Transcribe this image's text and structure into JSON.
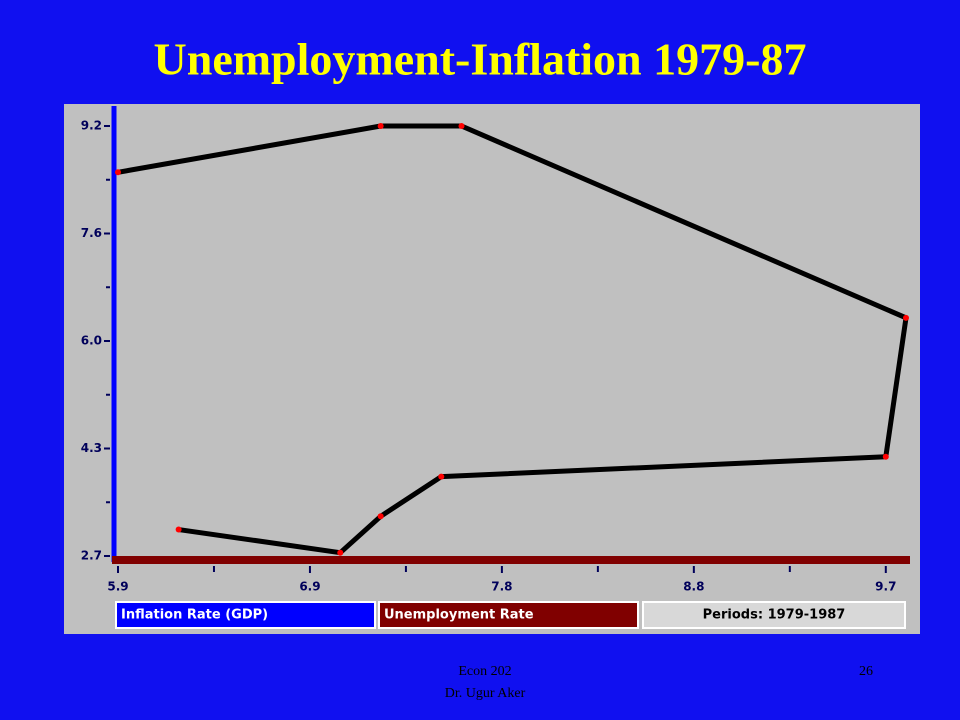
{
  "chart_data": {
    "type": "line",
    "title": "Unemployment-Inflation 1979-87",
    "x": [
      5.9,
      7.2,
      7.6,
      9.8,
      9.7,
      7.5,
      7.2,
      7.0,
      6.2
    ],
    "values": [
      8.5,
      9.2,
      9.2,
      6.3,
      4.2,
      3.9,
      3.3,
      2.75,
      3.1
    ],
    "line_color": "#000000",
    "marker_color": "#ff0000",
    "xlim": [
      5.9,
      9.8
    ],
    "ylim": [
      2.7,
      9.2
    ],
    "xticks": [
      5.9,
      {
        "value": 6.85,
        "label": "6.9"
      },
      7.8,
      {
        "value": 8.75,
        "label": "8.8"
      },
      9.7
    ],
    "yticks": [
      2.7,
      {
        "value": 4.325,
        "label": "4.3"
      },
      {
        "value": 5.95,
        "label": "6.0"
      },
      {
        "value": 7.575,
        "label": "7.6"
      },
      9.2
    ],
    "ylabel": "Inflation Rate (GDP)",
    "ylabel_color": "#0000ff",
    "xlabel": "Unemployment Rate",
    "xlabel_color": "#800000",
    "note": "Periods: 1979-1987"
  },
  "footer": {
    "course": "Econ 202",
    "author": "Dr. Ugur Aker",
    "page": "26"
  }
}
